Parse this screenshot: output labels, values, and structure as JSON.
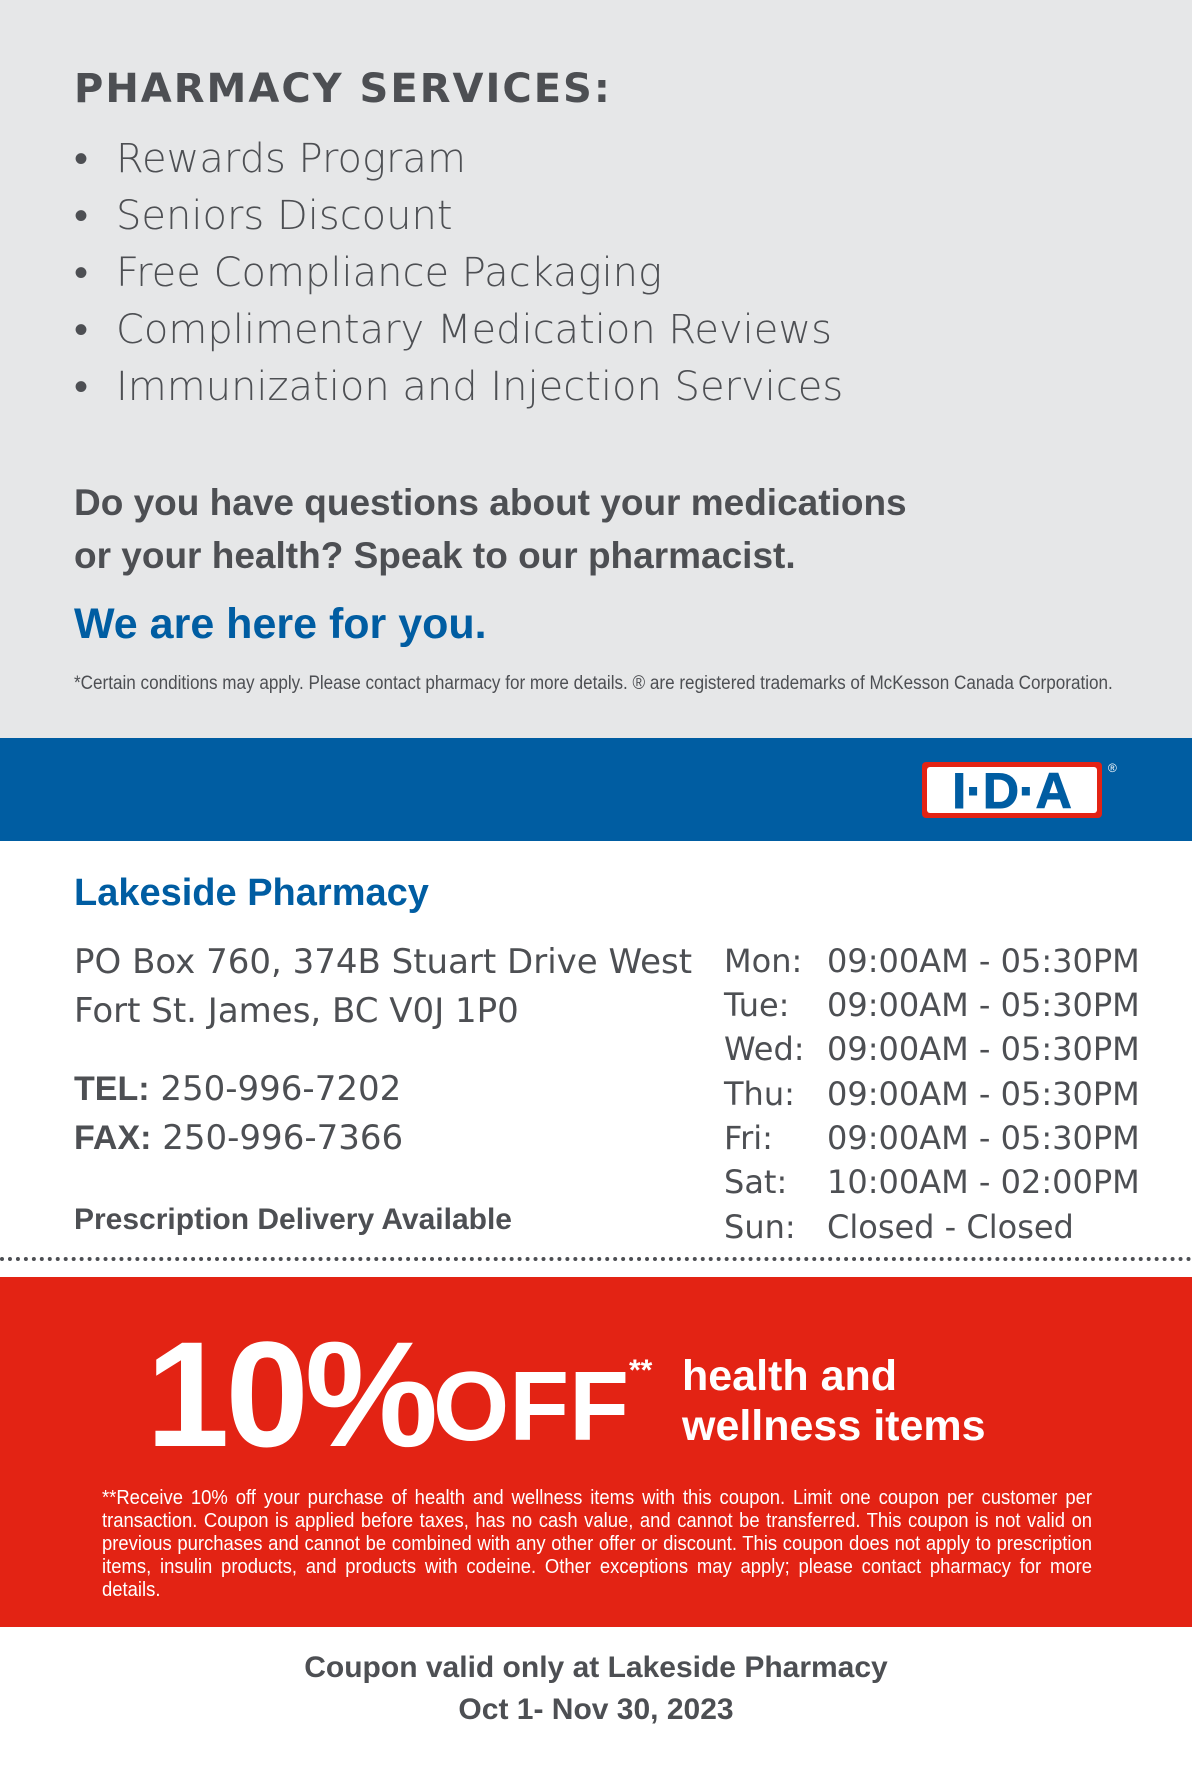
{
  "services": {
    "title": "PHARMACY SERVICES:",
    "items": [
      "Rewards Program",
      "Seniors Discount",
      "Free Compliance Packaging",
      "Complimentary Medication Reviews",
      "Immunization and Injection Services"
    ]
  },
  "question": {
    "line1": "Do you have questions about your medications",
    "line2": "or your health? Speak to our pharmacist."
  },
  "tagline": "We are here for you.",
  "disclaimer": "*Certain conditions may apply. Please contact pharmacy for more details. ® are registered trademarks of McKesson Canada Corporation.",
  "logo": {
    "text": "I·D·A",
    "registered": "®"
  },
  "pharmacy": {
    "name": "Lakeside Pharmacy",
    "address1": "PO Box 760, 374B Stuart Drive West",
    "address2": "Fort St. James, BC V0J 1P0",
    "tel_label": "TEL:",
    "tel": "250-996-7202",
    "fax_label": "FAX:",
    "fax": "250-996-7366",
    "delivery": "Prescription Delivery Available",
    "hours": [
      {
        "day": "Mon:",
        "time": "09:00AM - 05:30PM"
      },
      {
        "day": "Tue:",
        "time": "09:00AM - 05:30PM"
      },
      {
        "day": "Wed:",
        "time": "09:00AM - 05:30PM"
      },
      {
        "day": "Thu:",
        "time": "09:00AM - 05:30PM"
      },
      {
        "day": "Fri:",
        "time": "09:00AM - 05:30PM"
      },
      {
        "day": "Sat:",
        "time": "10:00AM - 02:00PM"
      },
      {
        "day": "Sun:",
        "time": "Closed - Closed"
      }
    ]
  },
  "coupon": {
    "percent": "10%",
    "off": "OFF",
    "marker": "**",
    "line1": "health and",
    "line2": "wellness items",
    "legal": "**Receive 10% off your purchase of health and wellness items with this coupon. Limit one coupon per customer per transaction. Coupon is applied before taxes, has no cash value, and cannot be transferred. This coupon is not valid on previous purchases and cannot be combined with any other offer or discount. This coupon does not apply to prescription items, insulin products, and products with codeine. Other exceptions may apply; please contact pharmacy for more details.",
    "valid_line1": "Coupon valid only at Lakeside Pharmacy",
    "valid_line2": "Oct 1- Nov 30, 2023"
  },
  "colors": {
    "gray_bg": "#e6e7e8",
    "text": "#4d4f53",
    "blue": "#005da2",
    "red": "#e32314"
  }
}
